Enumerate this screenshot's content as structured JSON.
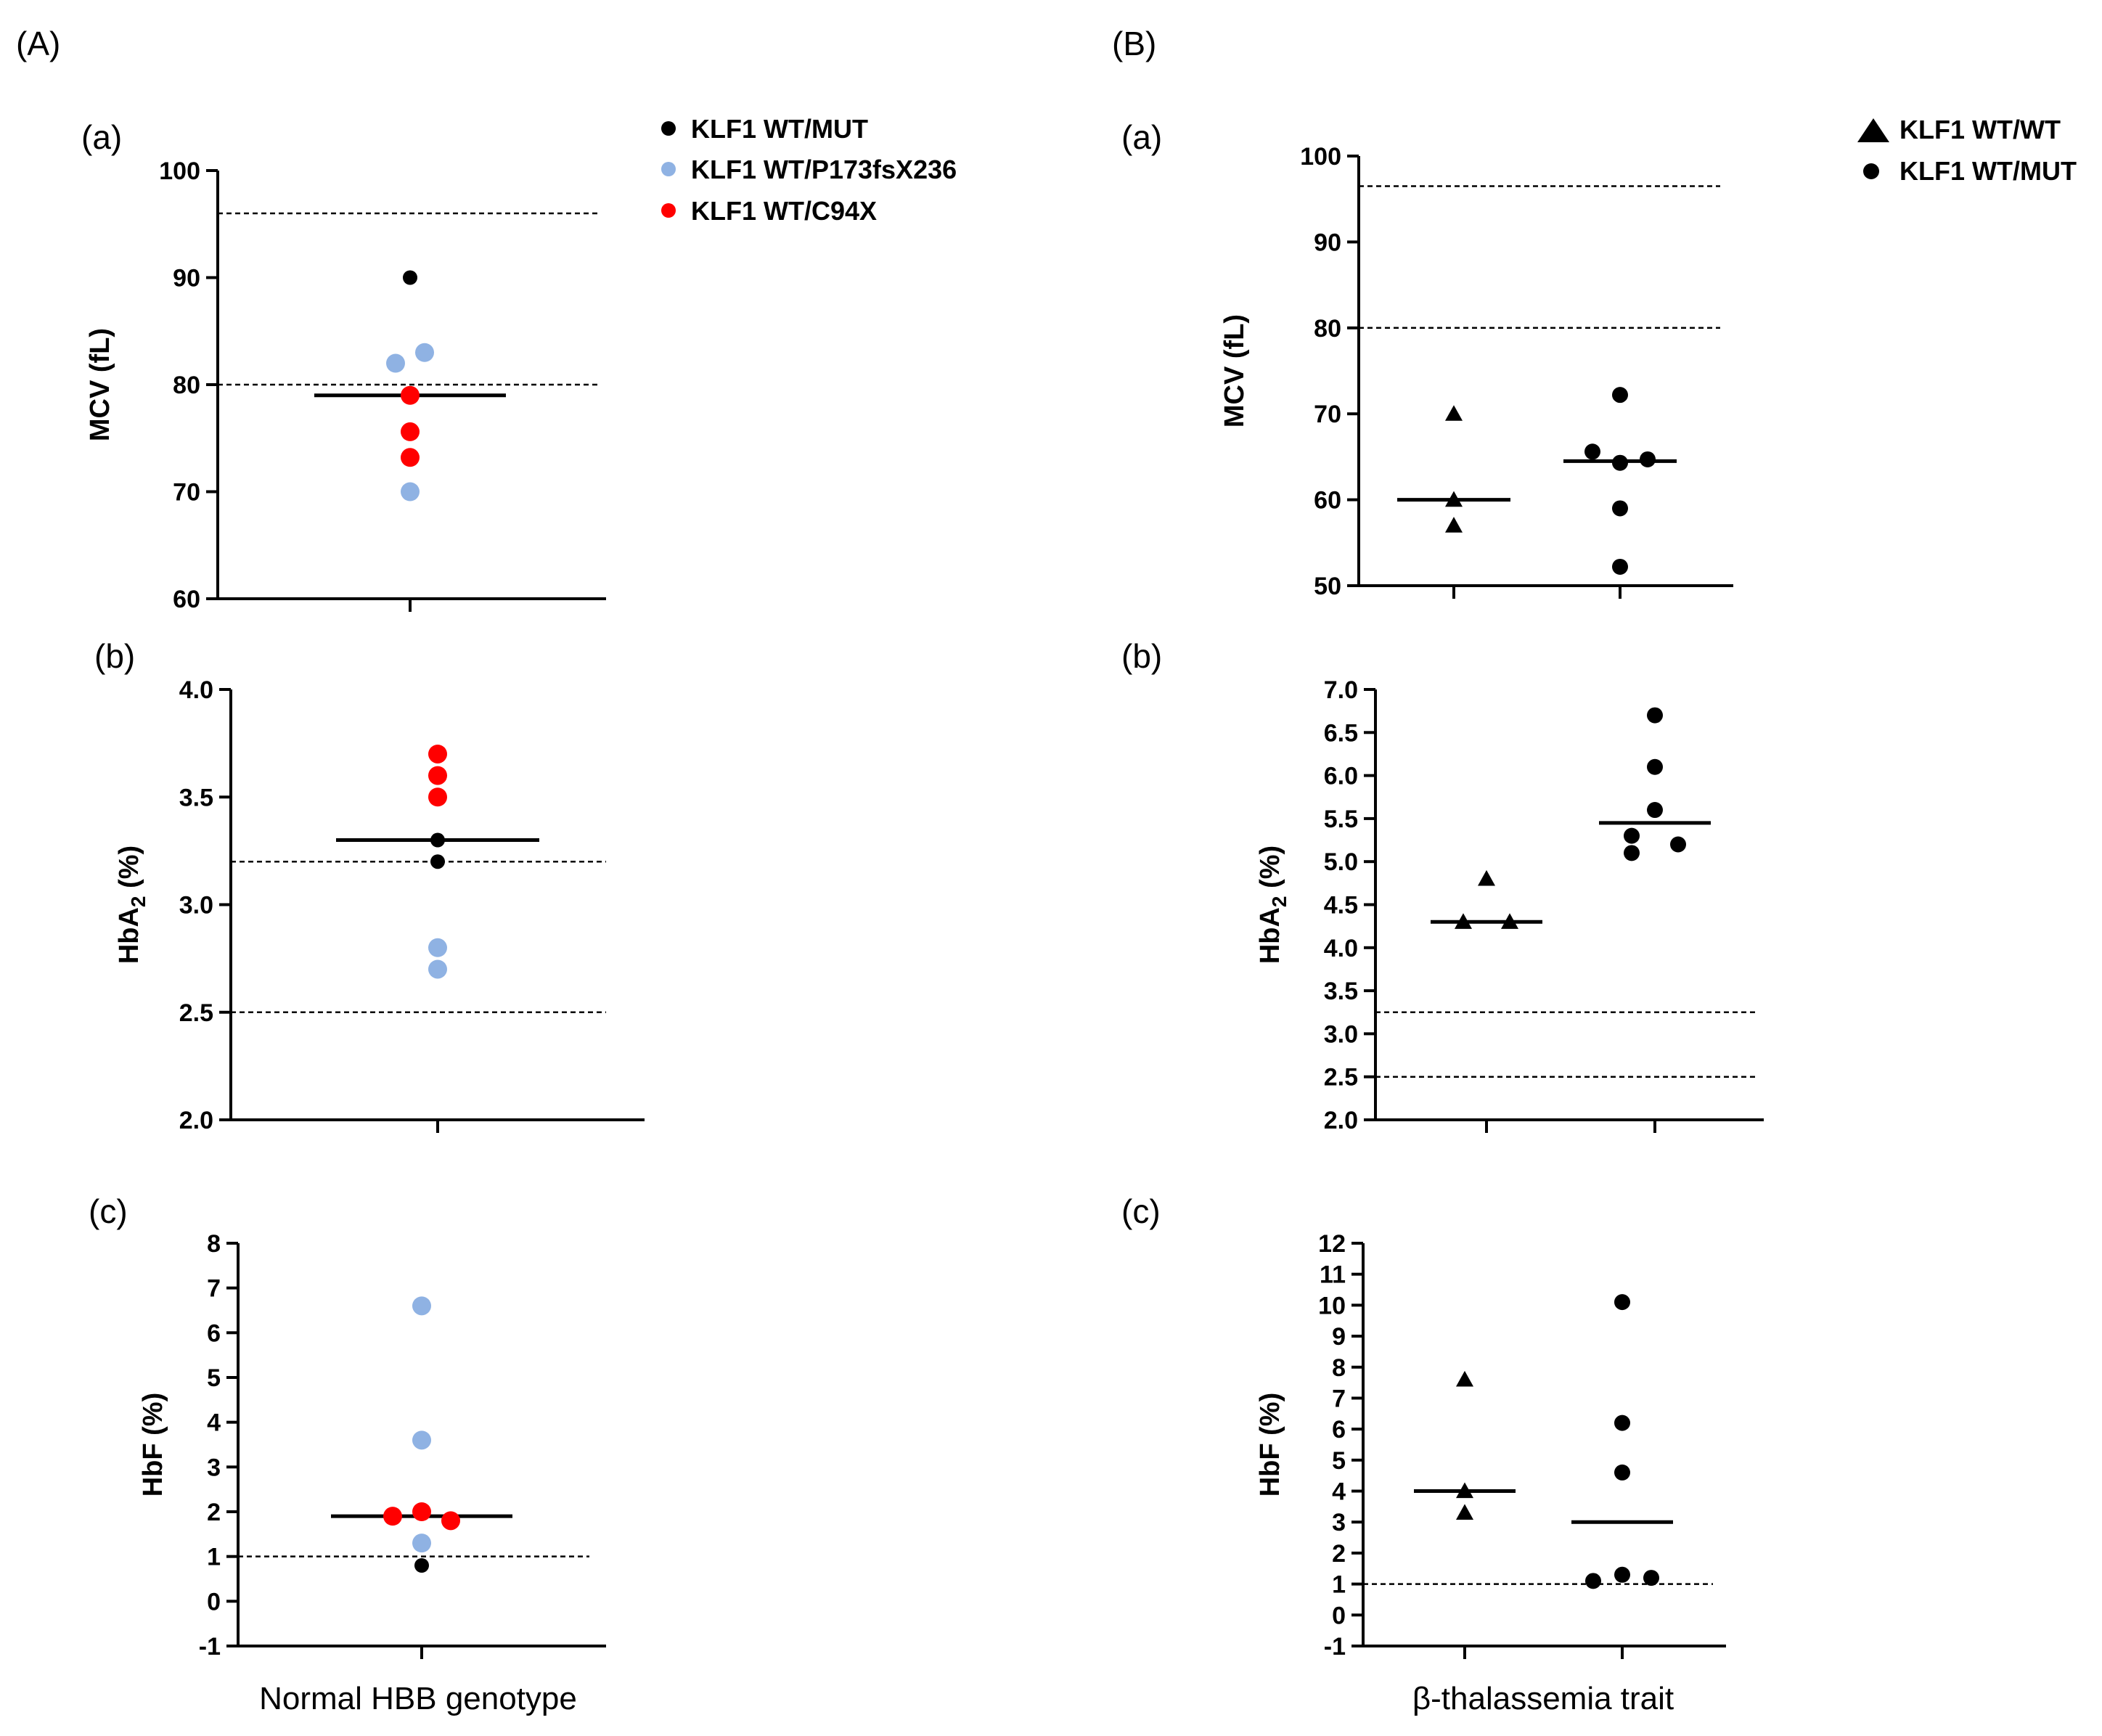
{
  "panel_headers": {
    "A": "(A)",
    "B": "(B)"
  },
  "legend_A": {
    "entries": [
      {
        "label": "KLF1 WT/MUT",
        "color": "#000000",
        "marker": "circle"
      },
      {
        "label": "KLF1 WT/P173fsX236",
        "color": "#8fb2e3",
        "marker": "circle"
      },
      {
        "label": "KLF1 WT/C94X",
        "color": "#ff0000",
        "marker": "circle"
      }
    ]
  },
  "legend_B": {
    "entries": [
      {
        "label": "KLF1 WT/WT",
        "color": "#000000",
        "marker": "triangle"
      },
      {
        "label": "KLF1 WT/MUT",
        "color": "#000000",
        "marker": "circle"
      }
    ]
  },
  "x_group_labels": {
    "A": "Normal HBB genotype",
    "B": "β-thalassemia trait"
  },
  "colors": {
    "black": "#000000",
    "blue": "#8fb2e3",
    "red": "#ff0000"
  },
  "chart_data": [
    {
      "id": "A-a",
      "type": "scatter",
      "panel_label": "(a)",
      "ylabel": "MCV (fL)",
      "ylim": [
        60,
        100
      ],
      "yticks": [
        60,
        70,
        80,
        90,
        100
      ],
      "tick_format": 0,
      "reference_lines": [
        96,
        80
      ],
      "groups": [
        {
          "name": "Normal HBB genotype",
          "median": 79,
          "points": [
            {
              "y": 90,
              "color": "#000000",
              "jitter": 0
            },
            {
              "y": 82,
              "color": "#8fb2e3",
              "jitter": -1
            },
            {
              "y": 83,
              "color": "#8fb2e3",
              "jitter": 1
            },
            {
              "y": 79,
              "color": "#ff0000",
              "jitter": 0
            },
            {
              "y": 75.6,
              "color": "#ff0000",
              "jitter": 0
            },
            {
              "y": 73.2,
              "color": "#ff0000",
              "jitter": 0
            },
            {
              "y": 70,
              "color": "#8fb2e3",
              "jitter": 0
            }
          ]
        }
      ]
    },
    {
      "id": "A-b",
      "type": "scatter",
      "panel_label": "(b)",
      "ylabel": "HbA2 (%)",
      "ylim": [
        2.0,
        4.0
      ],
      "yticks": [
        2.0,
        2.5,
        3.0,
        3.5,
        4.0
      ],
      "tick_format": 1,
      "reference_lines": [
        3.2,
        2.5
      ],
      "groups": [
        {
          "name": "Normal HBB genotype",
          "median": 3.3,
          "points": [
            {
              "y": 3.7,
              "color": "#ff0000",
              "jitter": 0
            },
            {
              "y": 3.6,
              "color": "#ff0000",
              "jitter": 0
            },
            {
              "y": 3.5,
              "color": "#ff0000",
              "jitter": 0
            },
            {
              "y": 3.3,
              "color": "#000000",
              "jitter": 0
            },
            {
              "y": 3.2,
              "color": "#000000",
              "jitter": 0
            },
            {
              "y": 2.8,
              "color": "#8fb2e3",
              "jitter": 0
            },
            {
              "y": 2.7,
              "color": "#8fb2e3",
              "jitter": 0
            }
          ]
        }
      ]
    },
    {
      "id": "A-c",
      "type": "scatter",
      "panel_label": "(c)",
      "ylabel": "HbF (%)",
      "ylim": [
        -1,
        8
      ],
      "yticks": [
        -1,
        0,
        1,
        2,
        3,
        4,
        5,
        6,
        7,
        8
      ],
      "tick_format": 0,
      "reference_lines": [
        1
      ],
      "groups": [
        {
          "name": "Normal HBB genotype",
          "median": 1.9,
          "points": [
            {
              "y": 6.6,
              "color": "#8fb2e3",
              "jitter": 0
            },
            {
              "y": 3.6,
              "color": "#8fb2e3",
              "jitter": 0
            },
            {
              "y": 1.9,
              "color": "#ff0000",
              "jitter": -1
            },
            {
              "y": 2.0,
              "color": "#ff0000",
              "jitter": 0
            },
            {
              "y": 1.8,
              "color": "#ff0000",
              "jitter": 1
            },
            {
              "y": 1.3,
              "color": "#8fb2e3",
              "jitter": 0
            },
            {
              "y": 0.8,
              "color": "#000000",
              "jitter": 0
            }
          ]
        }
      ]
    },
    {
      "id": "B-a",
      "type": "scatter",
      "panel_label": "(a)",
      "ylabel": "MCV (fL)",
      "ylim": [
        50,
        100
      ],
      "yticks": [
        50,
        60,
        70,
        80,
        90,
        100
      ],
      "tick_format": 0,
      "reference_lines": [
        96.5,
        80
      ],
      "groups": [
        {
          "name": "KLF1 WT/WT",
          "marker": "triangle",
          "median": 60,
          "points": [
            {
              "y": 70,
              "jitter": 0
            },
            {
              "y": 60,
              "jitter": 0
            },
            {
              "y": 57,
              "jitter": 0
            }
          ]
        },
        {
          "name": "KLF1 WT/MUT",
          "marker": "circle",
          "median": 64.5,
          "points": [
            {
              "y": 72.2,
              "jitter": 0
            },
            {
              "y": 65.6,
              "jitter": -1
            },
            {
              "y": 64.3,
              "jitter": 0
            },
            {
              "y": 64.7,
              "jitter": 1
            },
            {
              "y": 59,
              "jitter": 0
            },
            {
              "y": 52.2,
              "jitter": 0
            }
          ]
        }
      ]
    },
    {
      "id": "B-b",
      "type": "scatter",
      "panel_label": "(b)",
      "ylabel": "HbA2 (%)",
      "ylim": [
        2.0,
        7.0
      ],
      "yticks": [
        2.0,
        2.5,
        3.0,
        3.5,
        4.0,
        4.5,
        5.0,
        5.5,
        6.0,
        6.5,
        7.0
      ],
      "tick_format": 1,
      "reference_lines": [
        3.25,
        2.5
      ],
      "groups": [
        {
          "name": "KLF1 WT/WT",
          "marker": "triangle",
          "median": 4.3,
          "points": [
            {
              "y": 4.8,
              "jitter": 0
            },
            {
              "y": 4.3,
              "jitter": -1
            },
            {
              "y": 4.3,
              "jitter": 1
            }
          ]
        },
        {
          "name": "KLF1 WT/MUT",
          "marker": "circle",
          "median": 5.45,
          "points": [
            {
              "y": 6.7,
              "jitter": 0
            },
            {
              "y": 6.1,
              "jitter": 0
            },
            {
              "y": 5.6,
              "jitter": 0
            },
            {
              "y": 5.3,
              "jitter": -1
            },
            {
              "y": 5.2,
              "jitter": 1
            },
            {
              "y": 5.1,
              "jitter": -1
            }
          ]
        }
      ]
    },
    {
      "id": "B-c",
      "type": "scatter",
      "panel_label": "(c)",
      "ylabel": "HbF (%)",
      "ylim": [
        -1,
        12
      ],
      "yticks": [
        -1,
        0,
        1,
        2,
        3,
        4,
        5,
        6,
        7,
        8,
        9,
        10,
        11,
        12
      ],
      "tick_format": 0,
      "reference_lines": [
        1
      ],
      "groups": [
        {
          "name": "KLF1 WT/WT",
          "marker": "triangle",
          "median": 4,
          "points": [
            {
              "y": 7.6,
              "jitter": 0
            },
            {
              "y": 4.0,
              "jitter": 0
            },
            {
              "y": 3.3,
              "jitter": 0
            }
          ]
        },
        {
          "name": "KLF1 WT/MUT",
          "marker": "circle",
          "median": 3.0,
          "points": [
            {
              "y": 10.1,
              "jitter": 0
            },
            {
              "y": 6.2,
              "jitter": 0
            },
            {
              "y": 4.6,
              "jitter": 0
            },
            {
              "y": 1.3,
              "jitter": 0
            },
            {
              "y": 1.2,
              "jitter": 1
            },
            {
              "y": 1.1,
              "jitter": -1
            }
          ]
        }
      ]
    }
  ]
}
